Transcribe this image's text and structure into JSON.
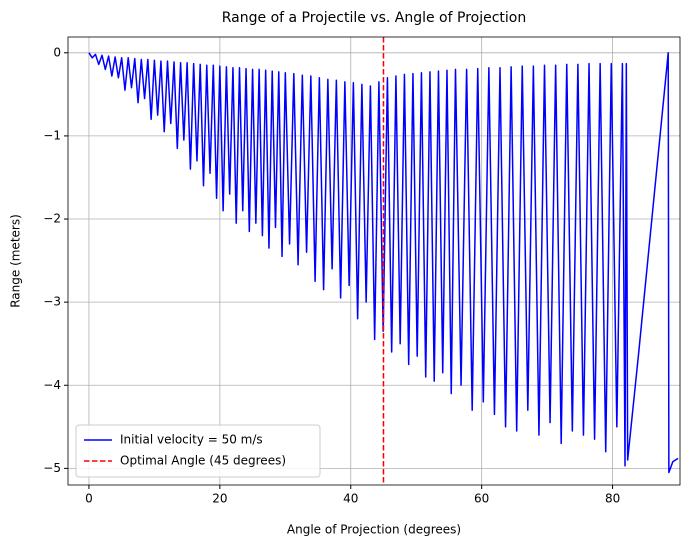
{
  "chart_data": {
    "type": "line",
    "title": "Range of a Projectile vs. Angle of Projection",
    "xlabel": "Angle of Projection (degrees)",
    "ylabel": "Range (meters)",
    "xlim": [
      -3.2,
      90.3
    ],
    "ylim": [
      -5.2,
      0.19
    ],
    "xticks": [
      0,
      20,
      40,
      60,
      80
    ],
    "yticks": [
      {
        "value": 0,
        "label": "0"
      },
      {
        "value": -1,
        "label": "−1"
      },
      {
        "value": -2,
        "label": "−2"
      },
      {
        "value": -3,
        "label": "−3"
      },
      {
        "value": -4,
        "label": "−4"
      },
      {
        "value": -5,
        "label": "−5"
      }
    ],
    "grid": true,
    "legend": "lower left",
    "series": [
      {
        "name": "Initial velocity = 50 m/s",
        "color": "#0000ff",
        "x": [
          0,
          0.5,
          1,
          1.5,
          2,
          2.5,
          3,
          3.5,
          4,
          4.5,
          5,
          5.5,
          6,
          6.5,
          7,
          7.5,
          8,
          8.5,
          9,
          9.5,
          10,
          10.5,
          11,
          11.5,
          12,
          12.5,
          13,
          13.5,
          14,
          14.5,
          15,
          15.5,
          16,
          16.5,
          17,
          17.5,
          18,
          18.5,
          19,
          19.5,
          20,
          20.5,
          21,
          21.5,
          22,
          22.5,
          23,
          23.5,
          24,
          24.5,
          25,
          25.5,
          26,
          26.5,
          27,
          27.5,
          28,
          28.5,
          29,
          29.5,
          30,
          30.65,
          31.3,
          31.95,
          32.6,
          33.25,
          33.9,
          34.55,
          35.2,
          35.85,
          36.5,
          37.15,
          37.8,
          38.45,
          39.1,
          39.75,
          40.4,
          41.05,
          41.7,
          42.35,
          43.0,
          43.65,
          44.3,
          44.95,
          45.6,
          46.25,
          46.9,
          47.55,
          48.2,
          48.85,
          49.5,
          50.15,
          50.8,
          51.45,
          52.1,
          52.75,
          53.4,
          54.05,
          54.7,
          55.35,
          56.0,
          56.85,
          57.7,
          58.55,
          59.4,
          60.25,
          61.1,
          61.95,
          62.8,
          63.65,
          64.5,
          65.35,
          66.2,
          67.05,
          67.9,
          68.75,
          69.6,
          70.45,
          71.3,
          72.15,
          73.0,
          73.85,
          74.7,
          75.55,
          76.4,
          77.25,
          78.1,
          78.95,
          79.8,
          80.65,
          81.5,
          81.9,
          82.1,
          82.3,
          84,
          86,
          87.5,
          88.5,
          88.6,
          89.2,
          90
        ],
        "values": [
          0,
          -0.06,
          -0.02,
          -0.14,
          -0.03,
          -0.2,
          -0.04,
          -0.28,
          -0.05,
          -0.3,
          -0.06,
          -0.45,
          -0.06,
          -0.42,
          -0.07,
          -0.6,
          -0.08,
          -0.55,
          -0.08,
          -0.8,
          -0.09,
          -0.75,
          -0.1,
          -0.95,
          -0.1,
          -0.85,
          -0.11,
          -1.15,
          -0.12,
          -1.05,
          -0.12,
          -1.4,
          -0.13,
          -1.3,
          -0.14,
          -1.6,
          -0.15,
          -1.45,
          -0.15,
          -1.75,
          -0.16,
          -1.9,
          -0.17,
          -1.7,
          -0.18,
          -2.05,
          -0.18,
          -1.9,
          -0.19,
          -2.15,
          -0.2,
          -2.05,
          -0.2,
          -2.2,
          -0.21,
          -2.35,
          -0.22,
          -2.1,
          -0.23,
          -2.45,
          -0.24,
          -2.3,
          -0.25,
          -2.55,
          -0.27,
          -2.4,
          -0.28,
          -2.75,
          -0.3,
          -2.85,
          -0.32,
          -2.6,
          -0.33,
          -2.95,
          -0.35,
          -2.8,
          -0.36,
          -3.2,
          -0.38,
          -3.0,
          -0.4,
          -3.45,
          -0.35,
          -3.35,
          -0.3,
          -3.6,
          -0.28,
          -3.5,
          -0.26,
          -3.75,
          -0.25,
          -3.65,
          -0.24,
          -3.9,
          -0.23,
          -3.95,
          -0.22,
          -3.85,
          -0.21,
          -4.1,
          -0.2,
          -4.0,
          -0.2,
          -4.3,
          -0.19,
          -4.2,
          -0.18,
          -4.35,
          -0.18,
          -4.5,
          -0.17,
          -4.55,
          -0.16,
          -4.3,
          -0.16,
          -4.6,
          -0.15,
          -4.45,
          -0.15,
          -4.7,
          -0.14,
          -4.55,
          -0.14,
          -4.6,
          -0.13,
          -4.65,
          -0.13,
          -4.8,
          -0.13,
          -4.5,
          -0.13,
          -4.97,
          -0.13,
          -4.9,
          -3.6,
          -2.0,
          -0.8,
          0,
          -5.05,
          -4.92,
          -4.88
        ]
      }
    ],
    "vline": {
      "name": "Optimal Angle (45 degrees)",
      "x": 45,
      "color": "#ff0000"
    }
  }
}
